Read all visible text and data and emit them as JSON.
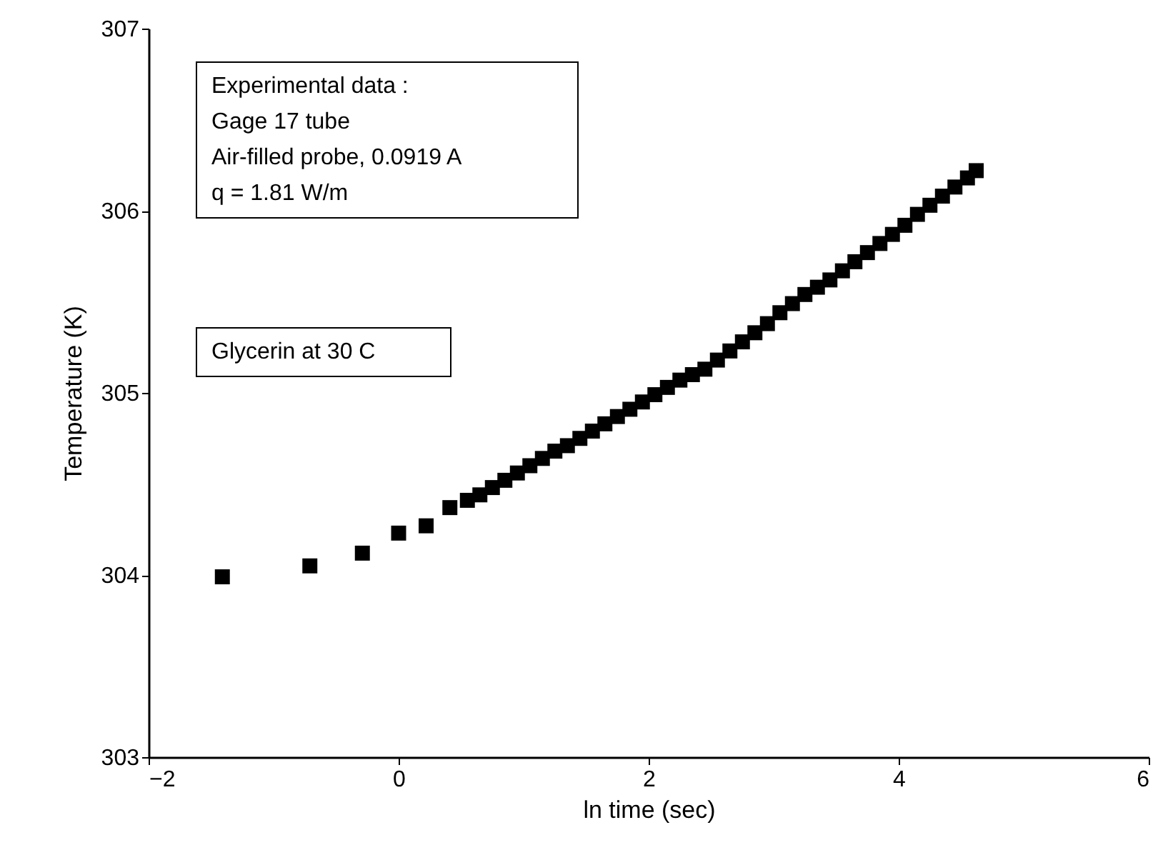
{
  "chart_data": {
    "type": "scatter",
    "xlabel": "ln time (sec)",
    "ylabel": "Temperature (K)",
    "annotations": [
      "Experimental data :\nGage 17 tube\nAir-filled probe, 0.0919 A\nq = 1.81 W/m",
      "Glycerin at 30 C"
    ],
    "x": [
      -1.41,
      -0.71,
      -0.29,
      0.0,
      0.22,
      0.41,
      0.55,
      0.65,
      0.75,
      0.85,
      0.95,
      1.05,
      1.15,
      1.25,
      1.35,
      1.45,
      1.55,
      1.65,
      1.75,
      1.85,
      1.95,
      2.05,
      2.15,
      2.25,
      2.35,
      2.45,
      2.55,
      2.65,
      2.75,
      2.85,
      2.95,
      3.05,
      3.15,
      3.25,
      3.35,
      3.45,
      3.55,
      3.65,
      3.75,
      3.85,
      3.95,
      4.05,
      4.15,
      4.25,
      4.35,
      4.45,
      4.55,
      4.62
    ],
    "series": [
      {
        "color": "#000000",
        "values": [
          303.99,
          304.05,
          304.12,
          304.23,
          304.27,
          304.37,
          304.41,
          304.44,
          304.48,
          304.52,
          304.56,
          304.6,
          304.64,
          304.68,
          304.71,
          304.75,
          304.79,
          304.83,
          304.87,
          304.91,
          304.95,
          304.99,
          305.03,
          305.07,
          305.1,
          305.13,
          305.18,
          305.23,
          305.28,
          305.33,
          305.38,
          305.44,
          305.49,
          305.54,
          305.58,
          305.62,
          305.67,
          305.72,
          305.77,
          305.82,
          305.87,
          305.92,
          305.98,
          306.03,
          306.08,
          306.13,
          306.18,
          306.22
        ]
      }
    ],
    "xlim": [
      -2,
      6
    ],
    "xticks": [
      -2,
      0,
      2,
      4,
      6
    ],
    "ylim": [
      303,
      307
    ],
    "yticks": [
      303,
      304,
      305,
      306,
      307
    ],
    "grid": false,
    "legend": false,
    "marker": "square"
  }
}
